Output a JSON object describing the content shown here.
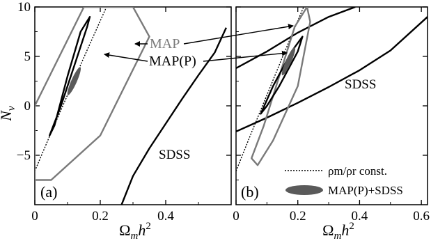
{
  "chart_data": [
    {
      "type": "line",
      "panel_label": "(a)",
      "xlabel": "Ωmh2",
      "ylabel": "Nν",
      "xlim": [
        0,
        0.6
      ],
      "ylim": [
        -10,
        10
      ],
      "xticks": [
        0,
        0.2,
        0.4
      ],
      "xtick_labels": [
        "0",
        "0.2",
        "0.4"
      ],
      "yticks": [
        -5,
        0,
        5,
        10
      ],
      "ytick_labels": [
        "−5",
        "0",
        "5",
        "10"
      ],
      "grid": false,
      "series": [
        {
          "name": "SDSS",
          "style": "solid-thick-black",
          "x": [
            0.265,
            0.3,
            0.35,
            0.4,
            0.45,
            0.5,
            0.55,
            0.585
          ],
          "y": [
            -10,
            -7.1,
            -4.3,
            -1.8,
            0.7,
            3.1,
            5.4,
            7.9
          ]
        },
        {
          "name": "ρm/ρr const.",
          "style": "dotted-black",
          "x": [
            0.0,
            0.05,
            0.1,
            0.15,
            0.2,
            0.25
          ],
          "y": [
            -6.6,
            -2.7,
            1.1,
            4.9,
            8.6,
            12.3
          ]
        },
        {
          "name": "MAP",
          "style": "solid-grey",
          "closed": true,
          "x": [
            0.0,
            0.15,
            0.3,
            0.35,
            0.2,
            0.05,
            0.0
          ],
          "y": [
            0.0,
            10,
            10,
            7.0,
            -3.0,
            -7.5,
            -7.5
          ]
        },
        {
          "name": "MAP(P)",
          "style": "solid-thick-black",
          "closed": true,
          "x": [
            0.045,
            0.08,
            0.12,
            0.16,
            0.168,
            0.14,
            0.1,
            0.06,
            0.045
          ],
          "y": [
            -3.0,
            0.0,
            4.0,
            8.0,
            9.0,
            7.5,
            3.0,
            -2.0,
            -3.0
          ]
        },
        {
          "name": "MAP(P)+SDSS",
          "style": "filled-grey-ellipse",
          "center": [
            0.12,
            2.5
          ]
        }
      ],
      "annotations": [
        "MAP",
        "MAP(P)",
        "SDSS",
        "(a)"
      ]
    },
    {
      "type": "line",
      "panel_label": "(b)",
      "xlabel": "Ωmh2",
      "ylabel": "",
      "xlim": [
        0,
        0.62
      ],
      "ylim": [
        -10,
        10
      ],
      "xticks": [
        0,
        0.2,
        0.4,
        0.6
      ],
      "xtick_labels": [
        "0",
        "0.2",
        "0.4",
        "0.6"
      ],
      "yticks": [
        -5,
        0,
        5,
        10
      ],
      "grid": false,
      "series": [
        {
          "name": "SDSS upper",
          "style": "solid-thick-black",
          "x": [
            0.0,
            0.1,
            0.2,
            0.3,
            0.386
          ],
          "y": [
            3.8,
            5.5,
            7.4,
            9.0,
            10
          ]
        },
        {
          "name": "SDSS lower",
          "style": "solid-thick-black",
          "x": [
            0.0,
            0.1,
            0.2,
            0.3,
            0.4,
            0.5,
            0.62
          ],
          "y": [
            -2.6,
            -1.2,
            0.3,
            1.9,
            3.6,
            5.6,
            9.0
          ]
        },
        {
          "name": "ρm/ρr const.",
          "style": "dotted-black",
          "x": [
            0.0,
            0.05,
            0.1,
            0.15,
            0.2,
            0.25
          ],
          "y": [
            -6.6,
            -2.7,
            1.1,
            4.9,
            8.6,
            12.3
          ]
        },
        {
          "name": "MAP",
          "style": "solid-grey",
          "closed": true,
          "x": [
            0.05,
            0.09,
            0.14,
            0.19,
            0.23,
            0.24,
            0.2,
            0.12,
            0.07,
            0.05
          ],
          "y": [
            -5.3,
            -2.0,
            3.0,
            8.0,
            10,
            8.5,
            2.0,
            -3.5,
            -6.0,
            -5.3
          ]
        },
        {
          "name": "MAP(P)",
          "style": "solid-thick-black",
          "closed": true,
          "x": [
            0.08,
            0.12,
            0.18,
            0.215,
            0.2,
            0.14,
            0.1,
            0.08
          ],
          "y": [
            -0.8,
            2.0,
            5.5,
            7.0,
            5.5,
            2.0,
            0.0,
            -0.8
          ]
        },
        {
          "name": "MAP(P)+SDSS",
          "style": "filled-grey-ellipse",
          "center": [
            0.17,
            4.5
          ]
        }
      ],
      "legend": {
        "placement": "bottom-right",
        "entries": [
          "ρm/ρr  const.",
          "MAP(P)+SDSS"
        ]
      },
      "annotations": [
        "SDSS",
        "(b)"
      ]
    }
  ],
  "labels": {
    "ylabel": "N",
    "ylabel_sub": "ν",
    "xlabel_main": "Ω",
    "xlabel_sub": "m",
    "xlabel_h": "h",
    "xlabel_sup": "2",
    "panel_a": "(a)",
    "panel_b": "(b)",
    "map": "MAP",
    "mapp": "MAP(P)",
    "sdss_a": "SDSS",
    "sdss_b": "SDSS",
    "legend_line": "ρm/ρr  const.",
    "legend_fill": "MAP(P)+SDSS"
  },
  "colors": {
    "black": "#000000",
    "grey": "#7a7a7a",
    "fill": "#5a5a5a",
    "background": "#ffffff"
  }
}
